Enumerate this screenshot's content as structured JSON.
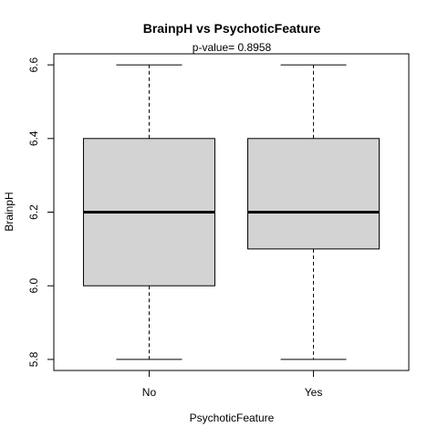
{
  "chart_data": {
    "type": "box",
    "title": "BrainpH  vs  PsychoticFeature",
    "subtitle": "p-value= 0.8958",
    "xlabel": "PsychoticFeature",
    "ylabel": "BrainpH",
    "ylim": [
      5.77,
      6.63
    ],
    "y_ticks": [
      5.8,
      6.0,
      6.2,
      6.4,
      6.6
    ],
    "y_tick_labels": [
      "5.8",
      "6.0",
      "6.2",
      "6.4",
      "6.6"
    ],
    "categories": [
      "No",
      "Yes"
    ],
    "boxes": [
      {
        "category": "No",
        "min": 5.8,
        "q1": 6.0,
        "median": 6.2,
        "q3": 6.4,
        "max": 6.6
      },
      {
        "category": "Yes",
        "min": 5.8,
        "q1": 6.1,
        "median": 6.2,
        "q3": 6.4,
        "max": 6.6
      }
    ],
    "colors": {
      "box_fill": "#d3d3d3",
      "stroke": "#000000"
    }
  }
}
